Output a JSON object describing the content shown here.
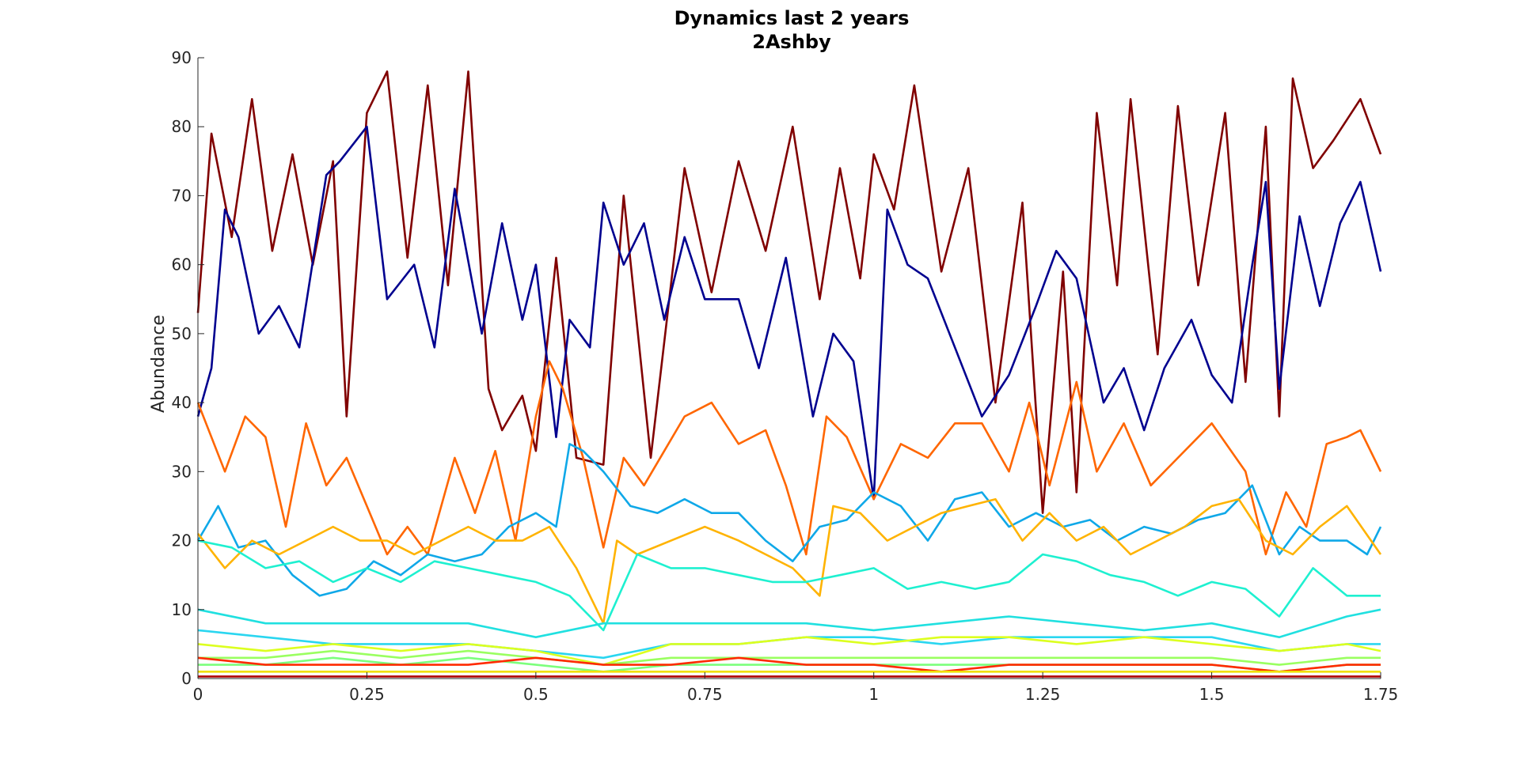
{
  "chart_data": {
    "type": "line",
    "title": "Dynamics last 2 years",
    "subtitle": "2Ashby",
    "xlabel": "",
    "ylabel": "Abundance",
    "xlim": [
      0,
      1.75
    ],
    "ylim": [
      0,
      90
    ],
    "xticks": [
      "0",
      "0.25",
      "0.5",
      "0.75",
      "1",
      "1.25",
      "1.5",
      "1.75"
    ],
    "yticks": [
      "0",
      "10",
      "20",
      "30",
      "40",
      "50",
      "60",
      "70",
      "80",
      "90"
    ],
    "grid": false,
    "legend": "none",
    "series": [
      {
        "color": "#800000",
        "x": [
          0,
          0.02,
          0.05,
          0.08,
          0.11,
          0.14,
          0.17,
          0.2,
          0.22,
          0.25,
          0.28,
          0.31,
          0.34,
          0.37,
          0.4,
          0.43,
          0.45,
          0.48,
          0.5,
          0.53,
          0.56,
          0.6,
          0.63,
          0.67,
          0.72,
          0.76,
          0.8,
          0.84,
          0.88,
          0.92,
          0.95,
          0.98,
          1.0,
          1.03,
          1.06,
          1.1,
          1.14,
          1.18,
          1.22,
          1.25,
          1.28,
          1.3,
          1.33,
          1.36,
          1.38,
          1.42,
          1.45,
          1.48,
          1.52,
          1.55,
          1.58,
          1.6,
          1.62,
          1.65,
          1.68,
          1.72,
          1.75
        ],
        "y": [
          53,
          79,
          64,
          84,
          62,
          76,
          60,
          75,
          38,
          82,
          88,
          61,
          86,
          57,
          88,
          42,
          36,
          41,
          33,
          61,
          32,
          31,
          70,
          32,
          74,
          56,
          75,
          62,
          80,
          55,
          74,
          58,
          76,
          68,
          86,
          59,
          74,
          40,
          69,
          24,
          59,
          27,
          82,
          57,
          84,
          47,
          83,
          57,
          82,
          43,
          80,
          38,
          87,
          74,
          78,
          84,
          76
        ]
      },
      {
        "color": "#00008f",
        "x": [
          0,
          0.02,
          0.04,
          0.06,
          0.09,
          0.12,
          0.15,
          0.19,
          0.21,
          0.25,
          0.28,
          0.32,
          0.35,
          0.38,
          0.42,
          0.45,
          0.48,
          0.5,
          0.53,
          0.55,
          0.58,
          0.6,
          0.63,
          0.66,
          0.69,
          0.72,
          0.75,
          0.8,
          0.83,
          0.87,
          0.91,
          0.94,
          0.97,
          1.0,
          1.02,
          1.05,
          1.08,
          1.12,
          1.16,
          1.2,
          1.24,
          1.27,
          1.3,
          1.34,
          1.37,
          1.4,
          1.43,
          1.47,
          1.5,
          1.53,
          1.56,
          1.58,
          1.6,
          1.63,
          1.66,
          1.69,
          1.72,
          1.75
        ],
        "y": [
          38,
          45,
          68,
          64,
          50,
          54,
          48,
          73,
          75,
          80,
          55,
          60,
          48,
          71,
          50,
          66,
          52,
          60,
          35,
          52,
          48,
          69,
          60,
          66,
          52,
          64,
          55,
          55,
          45,
          61,
          38,
          50,
          46,
          26,
          68,
          60,
          58,
          48,
          38,
          44,
          54,
          62,
          58,
          40,
          45,
          36,
          45,
          52,
          44,
          40,
          60,
          72,
          42,
          67,
          54,
          66,
          72,
          59
        ]
      },
      {
        "color": "#ff6600",
        "x": [
          0,
          0.04,
          0.07,
          0.1,
          0.13,
          0.16,
          0.19,
          0.22,
          0.25,
          0.28,
          0.31,
          0.34,
          0.38,
          0.41,
          0.44,
          0.47,
          0.5,
          0.52,
          0.54,
          0.57,
          0.6,
          0.63,
          0.66,
          0.69,
          0.72,
          0.76,
          0.8,
          0.84,
          0.87,
          0.9,
          0.93,
          0.96,
          1.0,
          1.04,
          1.08,
          1.12,
          1.16,
          1.2,
          1.23,
          1.26,
          1.3,
          1.33,
          1.37,
          1.41,
          1.45,
          1.5,
          1.55,
          1.58,
          1.61,
          1.64,
          1.67,
          1.7,
          1.72,
          1.75
        ],
        "y": [
          40,
          30,
          38,
          35,
          22,
          37,
          28,
          32,
          25,
          18,
          22,
          18,
          32,
          24,
          33,
          20,
          38,
          46,
          42,
          32,
          19,
          32,
          28,
          33,
          38,
          40,
          34,
          36,
          28,
          18,
          38,
          35,
          26,
          34,
          32,
          37,
          37,
          30,
          40,
          28,
          43,
          30,
          37,
          28,
          32,
          37,
          30,
          18,
          27,
          22,
          34,
          35,
          36,
          30
        ]
      },
      {
        "color": "#0fa8e8",
        "x": [
          0,
          0.03,
          0.06,
          0.1,
          0.14,
          0.18,
          0.22,
          0.26,
          0.3,
          0.34,
          0.38,
          0.42,
          0.46,
          0.5,
          0.53,
          0.55,
          0.57,
          0.6,
          0.64,
          0.68,
          0.72,
          0.76,
          0.8,
          0.84,
          0.88,
          0.92,
          0.96,
          1.0,
          1.04,
          1.08,
          1.12,
          1.16,
          1.2,
          1.24,
          1.28,
          1.32,
          1.36,
          1.4,
          1.44,
          1.48,
          1.52,
          1.56,
          1.6,
          1.63,
          1.66,
          1.7,
          1.73,
          1.75
        ],
        "y": [
          20,
          25,
          19,
          20,
          15,
          12,
          13,
          17,
          15,
          18,
          17,
          18,
          22,
          24,
          22,
          34,
          33,
          30,
          25,
          24,
          26,
          24,
          24,
          20,
          17,
          22,
          23,
          27,
          25,
          20,
          26,
          27,
          22,
          24,
          22,
          23,
          20,
          22,
          21,
          23,
          24,
          28,
          18,
          22,
          20,
          20,
          18,
          22
        ]
      },
      {
        "color": "#ffb300",
        "x": [
          0,
          0.04,
          0.08,
          0.12,
          0.16,
          0.2,
          0.24,
          0.28,
          0.32,
          0.36,
          0.4,
          0.44,
          0.48,
          0.52,
          0.56,
          0.6,
          0.62,
          0.65,
          0.7,
          0.75,
          0.8,
          0.84,
          0.88,
          0.92,
          0.94,
          0.98,
          1.02,
          1.06,
          1.1,
          1.14,
          1.18,
          1.22,
          1.26,
          1.3,
          1.34,
          1.38,
          1.42,
          1.46,
          1.5,
          1.54,
          1.58,
          1.62,
          1.66,
          1.7,
          1.75
        ],
        "y": [
          21,
          16,
          20,
          18,
          20,
          22,
          20,
          20,
          18,
          20,
          22,
          20,
          20,
          22,
          16,
          8,
          20,
          18,
          20,
          22,
          20,
          18,
          16,
          12,
          25,
          24,
          20,
          22,
          24,
          25,
          26,
          20,
          24,
          20,
          22,
          18,
          20,
          22,
          25,
          26,
          20,
          18,
          22,
          25,
          18
        ]
      },
      {
        "color": "#1ef0d0",
        "x": [
          0,
          0.05,
          0.1,
          0.15,
          0.2,
          0.25,
          0.3,
          0.35,
          0.4,
          0.45,
          0.5,
          0.55,
          0.6,
          0.65,
          0.7,
          0.75,
          0.8,
          0.85,
          0.9,
          0.95,
          1.0,
          1.05,
          1.1,
          1.15,
          1.2,
          1.25,
          1.3,
          1.35,
          1.4,
          1.45,
          1.5,
          1.55,
          1.6,
          1.65,
          1.7,
          1.75
        ],
        "y": [
          20,
          19,
          16,
          17,
          14,
          16,
          14,
          17,
          16,
          15,
          14,
          12,
          7,
          18,
          16,
          16,
          15,
          14,
          14,
          15,
          16,
          13,
          14,
          13,
          14,
          18,
          17,
          15,
          14,
          12,
          14,
          13,
          9,
          16,
          12,
          12
        ]
      },
      {
        "color": "#20e0e0",
        "x": [
          0,
          0.1,
          0.2,
          0.3,
          0.4,
          0.5,
          0.6,
          0.7,
          0.8,
          0.9,
          1.0,
          1.1,
          1.2,
          1.3,
          1.4,
          1.5,
          1.6,
          1.7,
          1.75
        ],
        "y": [
          10,
          8,
          8,
          8,
          8,
          6,
          8,
          8,
          8,
          8,
          7,
          8,
          9,
          8,
          7,
          8,
          6,
          9,
          10
        ]
      },
      {
        "color": "#2ad6f0",
        "x": [
          0,
          0.1,
          0.2,
          0.3,
          0.4,
          0.5,
          0.6,
          0.7,
          0.8,
          0.9,
          1.0,
          1.1,
          1.2,
          1.3,
          1.4,
          1.5,
          1.6,
          1.7,
          1.75
        ],
        "y": [
          7,
          6,
          5,
          5,
          5,
          4,
          3,
          5,
          5,
          6,
          6,
          5,
          6,
          6,
          6,
          6,
          4,
          5,
          5
        ]
      },
      {
        "color": "#dcff1f",
        "x": [
          0,
          0.1,
          0.2,
          0.3,
          0.4,
          0.5,
          0.6,
          0.7,
          0.8,
          0.9,
          1.0,
          1.1,
          1.2,
          1.3,
          1.4,
          1.5,
          1.6,
          1.7,
          1.75
        ],
        "y": [
          5,
          4,
          5,
          4,
          5,
          4,
          2,
          5,
          5,
          6,
          5,
          6,
          6,
          5,
          6,
          5,
          4,
          5,
          4
        ]
      },
      {
        "color": "#9aff60",
        "x": [
          0,
          0.1,
          0.2,
          0.3,
          0.4,
          0.5,
          0.6,
          0.7,
          0.8,
          0.9,
          1.0,
          1.1,
          1.2,
          1.3,
          1.4,
          1.5,
          1.6,
          1.7,
          1.75
        ],
        "y": [
          3,
          3,
          4,
          3,
          4,
          3,
          2,
          3,
          3,
          3,
          3,
          3,
          3,
          3,
          3,
          3,
          2,
          3,
          3
        ]
      },
      {
        "color": "#7cff7c",
        "x": [
          0,
          0.1,
          0.2,
          0.3,
          0.4,
          0.5,
          0.6,
          0.7,
          0.8,
          0.9,
          1.0,
          1.1,
          1.2,
          1.3,
          1.4,
          1.5,
          1.6,
          1.7,
          1.75
        ],
        "y": [
          2,
          2,
          3,
          2,
          3,
          2,
          1,
          2,
          2,
          2,
          2,
          2,
          2,
          2,
          2,
          2,
          1,
          2,
          2
        ]
      },
      {
        "color": "#ff2a00",
        "x": [
          0,
          0.1,
          0.2,
          0.3,
          0.4,
          0.5,
          0.6,
          0.7,
          0.8,
          0.9,
          1.0,
          1.1,
          1.2,
          1.3,
          1.4,
          1.5,
          1.6,
          1.7,
          1.75
        ],
        "y": [
          3,
          2,
          2,
          2,
          2,
          3,
          2,
          2,
          3,
          2,
          2,
          1,
          2,
          2,
          2,
          2,
          1,
          2,
          2
        ]
      },
      {
        "color": "#f0e000",
        "x": [
          0,
          0.25,
          0.5,
          0.75,
          1.0,
          1.25,
          1.5,
          1.75
        ],
        "y": [
          1,
          1,
          1,
          1,
          1,
          1,
          1,
          1
        ]
      },
      {
        "color": "#b00000",
        "x": [
          0,
          0.25,
          0.5,
          0.75,
          1.0,
          1.25,
          1.5,
          1.75
        ],
        "y": [
          0.3,
          0.3,
          0.3,
          0.3,
          0.3,
          0.3,
          0.3,
          0.3
        ]
      }
    ]
  }
}
